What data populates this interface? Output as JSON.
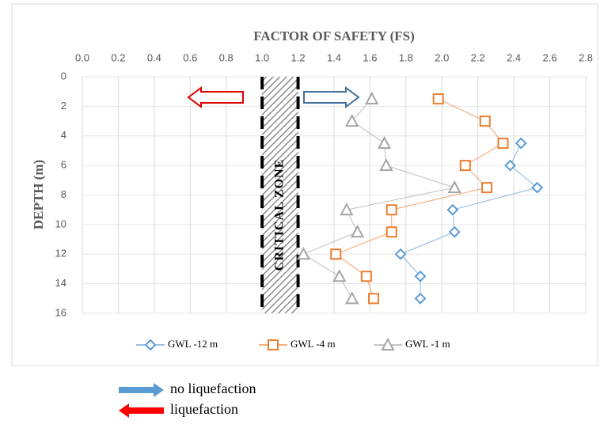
{
  "chart_data": {
    "type": "line",
    "title": "FACTOR OF SAFETY (FS)",
    "y_label": "DEPTH (m)",
    "xlim": [
      0,
      2.8
    ],
    "xticks": [
      {
        "value": 0,
        "label": "0.0"
      },
      0.2,
      0.4,
      0.6,
      0.8,
      {
        "value": 1,
        "label": "1.0"
      },
      1.2,
      1.4,
      1.6,
      1.8,
      {
        "value": 2,
        "label": "2.0"
      },
      2.2,
      2.4,
      2.6,
      2.8
    ],
    "ylim": [
      0,
      16
    ],
    "yticks": [
      0,
      2,
      4,
      6,
      8,
      10,
      12,
      14,
      16
    ],
    "y_inverted": true,
    "grid": true,
    "critical_zone": {
      "label": "CRITICAL ZONE",
      "range": [
        1.0,
        1.2
      ]
    },
    "series": [
      {
        "name": "GWL -12 m",
        "color": "#5b9bd5",
        "marker": "diamond",
        "x": [
          2.44,
          2.38,
          2.53,
          2.06,
          2.07,
          1.77,
          1.88,
          1.88
        ],
        "y": [
          4.5,
          6,
          7.5,
          9,
          10.5,
          12,
          13.5,
          15
        ]
      },
      {
        "name": "GWL -4 m",
        "color": "#ed7d31",
        "marker": "square",
        "x": [
          1.98,
          2.24,
          2.34,
          2.13,
          2.25,
          1.72,
          1.72,
          1.41,
          1.58,
          1.62
        ],
        "y": [
          1.5,
          3,
          4.5,
          6,
          7.5,
          9,
          10.5,
          12,
          13.5,
          15
        ]
      },
      {
        "name": "GWL -1 m",
        "color": "#a5a5a5",
        "marker": "triangle",
        "x": [
          1.61,
          1.5,
          1.68,
          1.69,
          2.07,
          1.47,
          1.53,
          1.23,
          1.43,
          1.5
        ],
        "y": [
          1.5,
          3,
          4.5,
          6,
          7.5,
          9,
          10.5,
          12,
          13.5,
          15
        ]
      }
    ],
    "key": [
      {
        "label": "no liquefaction",
        "color": "#5b9bd5"
      },
      {
        "label": "liquefaction",
        "color": "#ff0000"
      }
    ]
  }
}
